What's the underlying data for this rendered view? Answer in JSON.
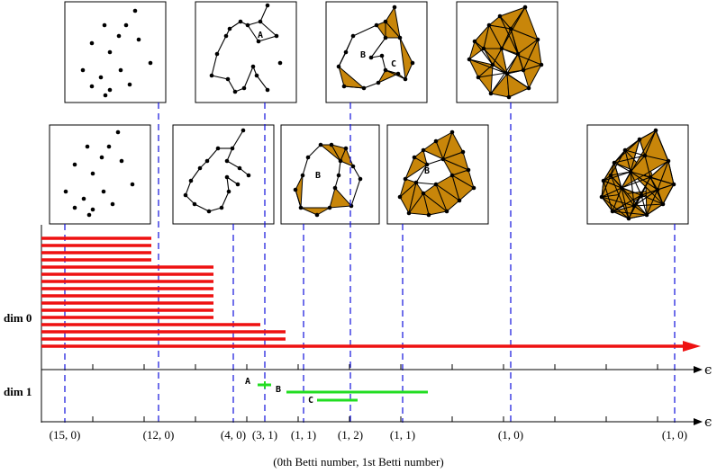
{
  "labels": {
    "dim0": "dim 0",
    "dim1": "dim 1",
    "epsilon": "ϵ",
    "footer": "(0th Betti number, 1st Betti number)"
  },
  "betti_pairs": [
    "(15, 0)",
    "(12, 0)",
    "(4, 0)",
    "(3, 1)",
    "(1, 1)",
    "(1, 2)",
    "(1, 1)",
    "(1, 0)",
    "(1, 0)"
  ],
  "bar_labels": {
    "a": "A",
    "b": "B",
    "c": "C"
  },
  "colors": {
    "dim0": "#ee1111",
    "dim1": "#22dd22",
    "complex_fill": "#c8860a",
    "dash": "#1010dd"
  }
}
